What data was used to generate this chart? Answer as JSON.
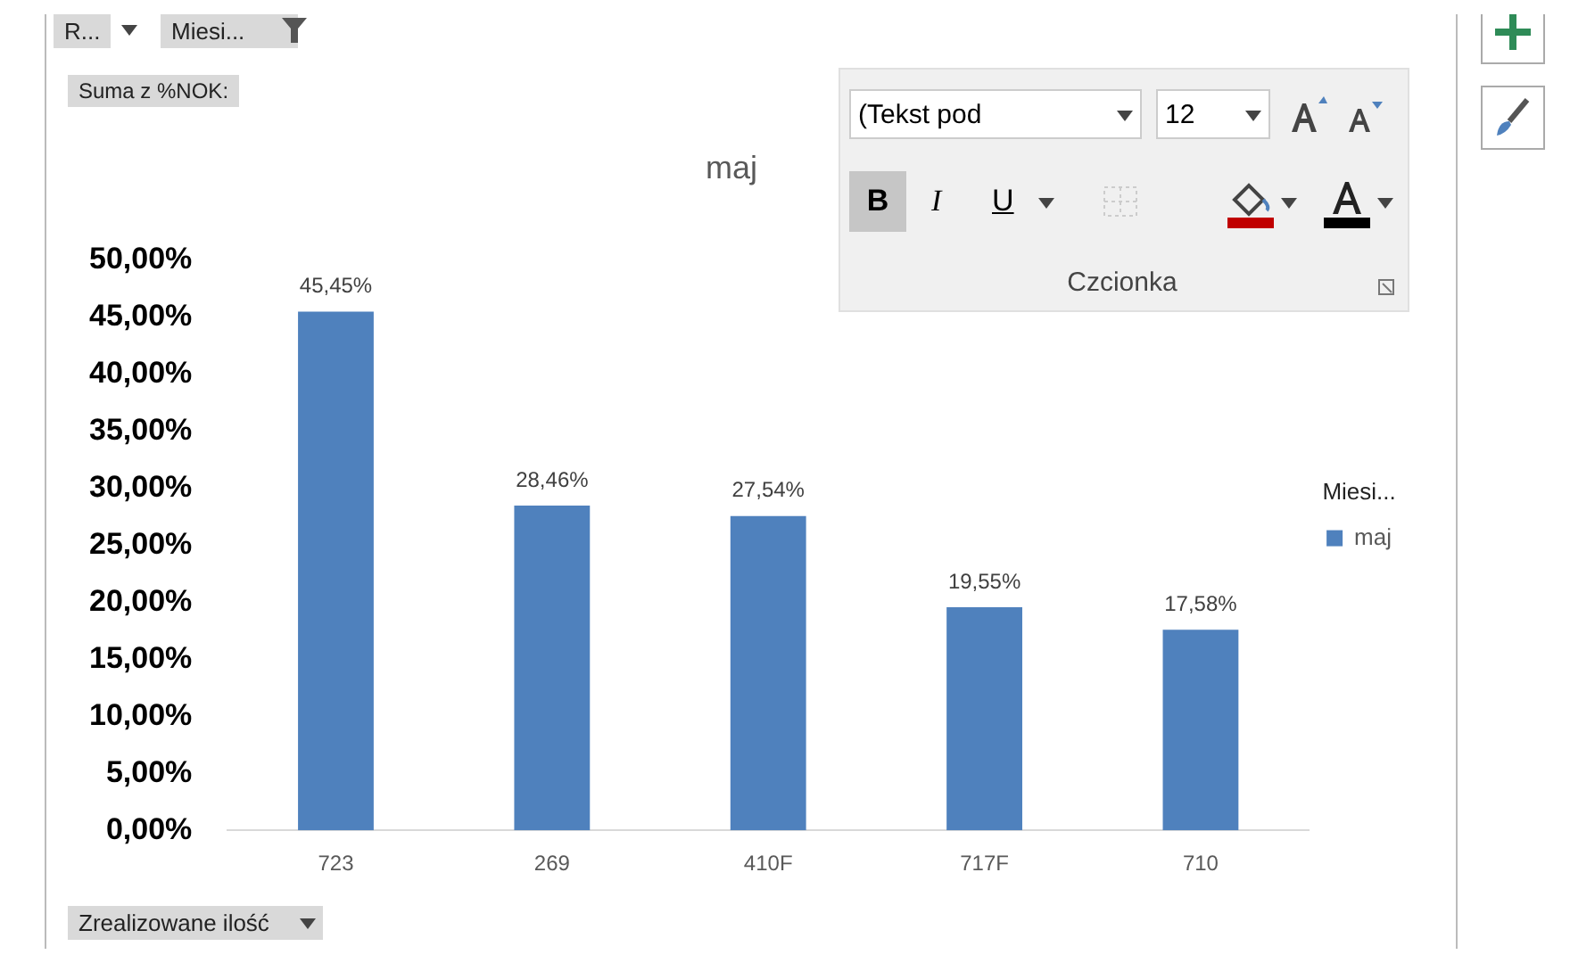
{
  "chart_data": {
    "type": "bar",
    "title": "maj",
    "categories": [
      "723",
      "269",
      "410F",
      "717F",
      "710"
    ],
    "series": [
      {
        "name": "maj",
        "color": "#4f81bd",
        "values": [
          45.45,
          28.46,
          27.54,
          19.55,
          17.58
        ],
        "value_labels": [
          "45,45%",
          "28,46%",
          "27,54%",
          "19,55%",
          "17,58%"
        ]
      }
    ],
    "ylim": [
      0,
      50
    ],
    "yticks": [
      {
        "value": 0,
        "label": "0,00%"
      },
      {
        "value": 5,
        "label": "5,00%"
      },
      {
        "value": 10,
        "label": "10,00%"
      },
      {
        "value": 15,
        "label": "15,00%"
      },
      {
        "value": 20,
        "label": "20,00%"
      },
      {
        "value": 25,
        "label": "25,00%"
      },
      {
        "value": 30,
        "label": "30,00%"
      },
      {
        "value": 35,
        "label": "35,00%"
      },
      {
        "value": 40,
        "label": "40,00%"
      },
      {
        "value": 45,
        "label": "45,00%"
      },
      {
        "value": 50,
        "label": "50,00%"
      }
    ],
    "grid": false,
    "legend": "right",
    "legend_title": "Miesi...",
    "annotations": [
      "R...",
      "Miesi...",
      "Suma z %NOK:",
      "Zrealizowane ilość",
      "(Tekst pod",
      "12",
      "B",
      "I",
      "U",
      "Czcionka"
    ]
  }
}
